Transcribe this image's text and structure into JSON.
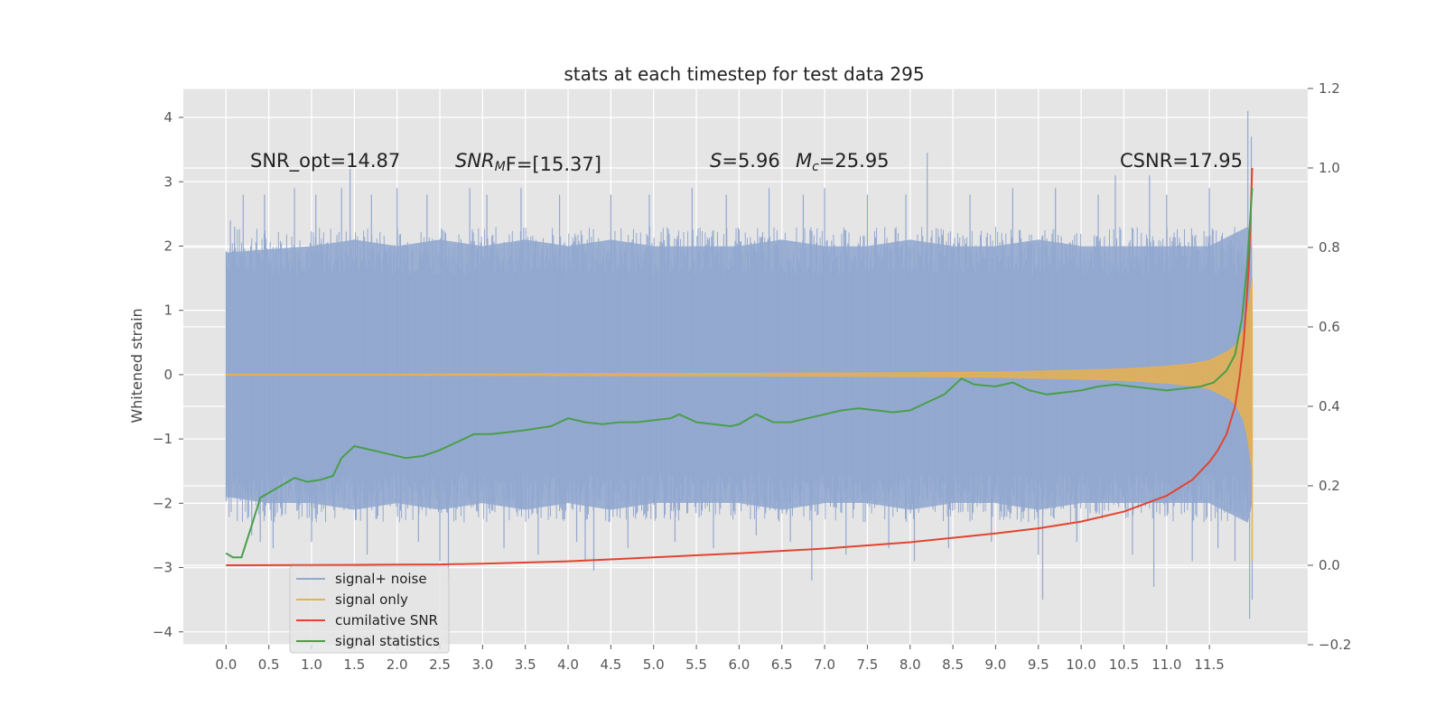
{
  "chart_data": {
    "type": "line",
    "title": "stats at each timestep for test data 295",
    "ylabel": "Whitened strain",
    "xlim": [
      -0.5,
      12.65
    ],
    "ylim": [
      -4.2,
      4.45
    ],
    "y2lim": [
      -0.2,
      1.2
    ],
    "grid": true,
    "xticks": [
      "0.0",
      "0.5",
      "1.0",
      "1.5",
      "2.0",
      "2.5",
      "3.0",
      "3.5",
      "4.0",
      "4.5",
      "5.0",
      "5.5",
      "6.0",
      "6.5",
      "7.0",
      "7.5",
      "8.0",
      "8.5",
      "9.0",
      "9.5",
      "10.0",
      "10.5",
      "11.0",
      "11.5"
    ],
    "yticks": [
      "4",
      "3",
      "2",
      "1",
      "0",
      "−1",
      "−2",
      "−3",
      "−4"
    ],
    "y2ticks": [
      "1.2",
      "1.0",
      "0.8",
      "0.6",
      "0.4",
      "0.2",
      "0.0",
      "−0.2"
    ],
    "annotations": {
      "snr_opt": "SNR_opt=14.87",
      "snr_mf_main": "SNR",
      "snr_mf_sub": "M",
      "snr_mf_rest": "F=[15.37]",
      "s_main": "S",
      "s_rest": "=5.96",
      "mc_main": "M",
      "mc_sub": "c",
      "mc_rest": "=25.95",
      "csnr": "CSNR=17.95"
    },
    "legend_position": "lower-left",
    "series": [
      {
        "name": "signal+ noise",
        "color": "#92a8cf",
        "axis": "left",
        "envelope_upper": [
          [
            0.0,
            1.9
          ],
          [
            0.5,
            1.95
          ],
          [
            1.0,
            2.0
          ],
          [
            1.5,
            2.1
          ],
          [
            2.0,
            2.0
          ],
          [
            2.5,
            2.1
          ],
          [
            3.0,
            2.0
          ],
          [
            3.5,
            2.1
          ],
          [
            4.0,
            2.0
          ],
          [
            4.5,
            2.1
          ],
          [
            5.0,
            2.0
          ],
          [
            5.5,
            2.0
          ],
          [
            6.0,
            2.0
          ],
          [
            6.5,
            2.1
          ],
          [
            7.0,
            2.0
          ],
          [
            7.5,
            2.0
          ],
          [
            8.0,
            2.1
          ],
          [
            8.5,
            2.0
          ],
          [
            9.0,
            2.0
          ],
          [
            9.5,
            2.1
          ],
          [
            10.0,
            2.0
          ],
          [
            10.5,
            2.0
          ],
          [
            11.0,
            2.0
          ],
          [
            11.5,
            2.0
          ],
          [
            11.95,
            2.3
          ],
          [
            12.0,
            2.0
          ]
        ],
        "envelope_lower": [
          [
            0.0,
            -1.9
          ],
          [
            0.5,
            -2.0
          ],
          [
            1.0,
            -2.0
          ],
          [
            1.5,
            -2.1
          ],
          [
            2.0,
            -2.0
          ],
          [
            2.5,
            -2.1
          ],
          [
            3.0,
            -2.0
          ],
          [
            3.5,
            -2.1
          ],
          [
            4.0,
            -2.0
          ],
          [
            4.5,
            -2.1
          ],
          [
            5.0,
            -2.0
          ],
          [
            5.5,
            -2.0
          ],
          [
            6.0,
            -2.0
          ],
          [
            6.5,
            -2.1
          ],
          [
            7.0,
            -2.0
          ],
          [
            7.5,
            -2.0
          ],
          [
            8.0,
            -2.1
          ],
          [
            8.5,
            -2.0
          ],
          [
            9.0,
            -2.0
          ],
          [
            9.5,
            -2.1
          ],
          [
            10.0,
            -2.0
          ],
          [
            10.5,
            -2.0
          ],
          [
            11.0,
            -2.0
          ],
          [
            11.5,
            -2.0
          ],
          [
            11.95,
            -2.3
          ],
          [
            12.0,
            -2.0
          ]
        ],
        "spikes": [
          [
            0.05,
            2.4
          ],
          [
            0.1,
            2.3
          ],
          [
            0.2,
            2.8
          ],
          [
            0.3,
            -2.5
          ],
          [
            0.4,
            -2.6
          ],
          [
            0.45,
            2.8
          ],
          [
            0.55,
            -2.7
          ],
          [
            0.8,
            2.9
          ],
          [
            1.05,
            2.8
          ],
          [
            1.0,
            -2.6
          ],
          [
            1.35,
            2.9
          ],
          [
            1.45,
            3.2
          ],
          [
            1.65,
            -2.8
          ],
          [
            1.7,
            2.8
          ],
          [
            2.0,
            2.9
          ],
          [
            2.25,
            -2.6
          ],
          [
            2.35,
            2.8
          ],
          [
            2.5,
            -2.9
          ],
          [
            2.6,
            -3.2
          ],
          [
            2.85,
            2.9
          ],
          [
            3.05,
            2.8
          ],
          [
            3.25,
            -2.7
          ],
          [
            3.45,
            2.9
          ],
          [
            3.65,
            -2.8
          ],
          [
            3.9,
            2.8
          ],
          [
            4.1,
            -2.6
          ],
          [
            4.2,
            -2.9
          ],
          [
            4.3,
            -3.05
          ],
          [
            4.5,
            2.8
          ],
          [
            4.7,
            -2.7
          ],
          [
            4.95,
            2.8
          ],
          [
            5.25,
            -2.6
          ],
          [
            5.45,
            2.9
          ],
          [
            5.7,
            -2.7
          ],
          [
            5.85,
            2.8
          ],
          [
            6.2,
            -2.5
          ],
          [
            6.35,
            2.9
          ],
          [
            6.6,
            -2.6
          ],
          [
            6.75,
            2.8
          ],
          [
            6.85,
            -3.2
          ],
          [
            7.0,
            2.9
          ],
          [
            7.25,
            -2.8
          ],
          [
            7.5,
            2.8
          ],
          [
            7.75,
            -2.7
          ],
          [
            7.95,
            2.8
          ],
          [
            8.05,
            -2.9
          ],
          [
            8.2,
            3.45
          ],
          [
            8.45,
            -2.7
          ],
          [
            8.7,
            2.8
          ],
          [
            8.95,
            -2.6
          ],
          [
            9.2,
            2.9
          ],
          [
            9.5,
            -2.8
          ],
          [
            9.55,
            -3.5
          ],
          [
            9.7,
            2.9
          ],
          [
            9.95,
            -2.6
          ],
          [
            10.2,
            2.8
          ],
          [
            10.4,
            3.1
          ],
          [
            10.6,
            -2.8
          ],
          [
            10.8,
            3.1
          ],
          [
            10.85,
            -3.3
          ],
          [
            11.0,
            2.8
          ],
          [
            11.3,
            -2.9
          ],
          [
            11.5,
            2.9
          ],
          [
            11.6,
            -2.7
          ],
          [
            11.8,
            -2.9
          ],
          [
            11.95,
            4.1
          ],
          [
            11.97,
            -3.8
          ],
          [
            11.99,
            3.7
          ],
          [
            12.0,
            -3.5
          ]
        ]
      },
      {
        "name": "signal only",
        "color": "#e8b04f",
        "axis": "left",
        "envelope": [
          [
            0.0,
            0.01
          ],
          [
            2.0,
            0.01
          ],
          [
            4.0,
            0.015
          ],
          [
            6.0,
            0.02
          ],
          [
            8.0,
            0.03
          ],
          [
            9.0,
            0.04
          ],
          [
            10.0,
            0.07
          ],
          [
            10.5,
            0.09
          ],
          [
            11.0,
            0.13
          ],
          [
            11.3,
            0.17
          ],
          [
            11.5,
            0.22
          ],
          [
            11.7,
            0.35
          ],
          [
            11.8,
            0.45
          ],
          [
            11.9,
            0.7
          ],
          [
            11.95,
            1.0
          ],
          [
            12.0,
            1.5
          ]
        ],
        "final_spike": [
          [
            12.0,
            -2.9
          ],
          [
            12.0,
            1.0
          ]
        ]
      },
      {
        "name": "cumilative SNR",
        "color": "#e2442f",
        "axis": "right",
        "points": [
          [
            0.0,
            0.0
          ],
          [
            1.0,
            0.0005
          ],
          [
            2.0,
            0.0015
          ],
          [
            2.5,
            0.002
          ],
          [
            3.0,
            0.004
          ],
          [
            4.0,
            0.01
          ],
          [
            5.0,
            0.02
          ],
          [
            6.0,
            0.03
          ],
          [
            7.0,
            0.042
          ],
          [
            8.0,
            0.058
          ],
          [
            9.0,
            0.08
          ],
          [
            9.5,
            0.093
          ],
          [
            10.0,
            0.11
          ],
          [
            10.5,
            0.135
          ],
          [
            11.0,
            0.175
          ],
          [
            11.3,
            0.215
          ],
          [
            11.5,
            0.26
          ],
          [
            11.6,
            0.29
          ],
          [
            11.7,
            0.33
          ],
          [
            11.8,
            0.4
          ],
          [
            11.85,
            0.47
          ],
          [
            11.9,
            0.56
          ],
          [
            11.93,
            0.65
          ],
          [
            11.96,
            0.75
          ],
          [
            11.98,
            0.87
          ],
          [
            12.0,
            1.0
          ]
        ]
      },
      {
        "name": "signal statistics",
        "color": "#4a9e4a",
        "axis": "right",
        "points": [
          [
            0.0,
            0.03
          ],
          [
            0.08,
            0.02
          ],
          [
            0.18,
            0.02
          ],
          [
            0.3,
            0.1
          ],
          [
            0.4,
            0.17
          ],
          [
            0.6,
            0.195
          ],
          [
            0.8,
            0.22
          ],
          [
            0.95,
            0.21
          ],
          [
            1.1,
            0.215
          ],
          [
            1.25,
            0.225
          ],
          [
            1.35,
            0.27
          ],
          [
            1.5,
            0.3
          ],
          [
            1.7,
            0.29
          ],
          [
            1.9,
            0.28
          ],
          [
            2.1,
            0.27
          ],
          [
            2.3,
            0.275
          ],
          [
            2.5,
            0.29
          ],
          [
            2.7,
            0.31
          ],
          [
            2.9,
            0.33
          ],
          [
            3.1,
            0.33
          ],
          [
            3.3,
            0.335
          ],
          [
            3.5,
            0.34
          ],
          [
            3.8,
            0.35
          ],
          [
            4.0,
            0.37
          ],
          [
            4.2,
            0.36
          ],
          [
            4.4,
            0.355
          ],
          [
            4.6,
            0.36
          ],
          [
            4.8,
            0.36
          ],
          [
            5.0,
            0.365
          ],
          [
            5.2,
            0.37
          ],
          [
            5.3,
            0.38
          ],
          [
            5.5,
            0.36
          ],
          [
            5.7,
            0.355
          ],
          [
            5.9,
            0.35
          ],
          [
            6.0,
            0.355
          ],
          [
            6.2,
            0.38
          ],
          [
            6.4,
            0.36
          ],
          [
            6.6,
            0.36
          ],
          [
            6.8,
            0.37
          ],
          [
            7.0,
            0.38
          ],
          [
            7.2,
            0.39
          ],
          [
            7.4,
            0.395
          ],
          [
            7.6,
            0.39
          ],
          [
            7.8,
            0.385
          ],
          [
            8.0,
            0.39
          ],
          [
            8.2,
            0.41
          ],
          [
            8.4,
            0.43
          ],
          [
            8.6,
            0.47
          ],
          [
            8.75,
            0.455
          ],
          [
            9.0,
            0.45
          ],
          [
            9.2,
            0.46
          ],
          [
            9.4,
            0.44
          ],
          [
            9.6,
            0.43
          ],
          [
            9.8,
            0.435
          ],
          [
            10.0,
            0.44
          ],
          [
            10.2,
            0.45
          ],
          [
            10.4,
            0.455
          ],
          [
            10.6,
            0.45
          ],
          [
            10.8,
            0.445
          ],
          [
            11.0,
            0.44
          ],
          [
            11.2,
            0.445
          ],
          [
            11.4,
            0.45
          ],
          [
            11.55,
            0.46
          ],
          [
            11.7,
            0.49
          ],
          [
            11.8,
            0.53
          ],
          [
            11.88,
            0.62
          ],
          [
            11.94,
            0.75
          ],
          [
            12.0,
            0.95
          ]
        ]
      }
    ]
  }
}
